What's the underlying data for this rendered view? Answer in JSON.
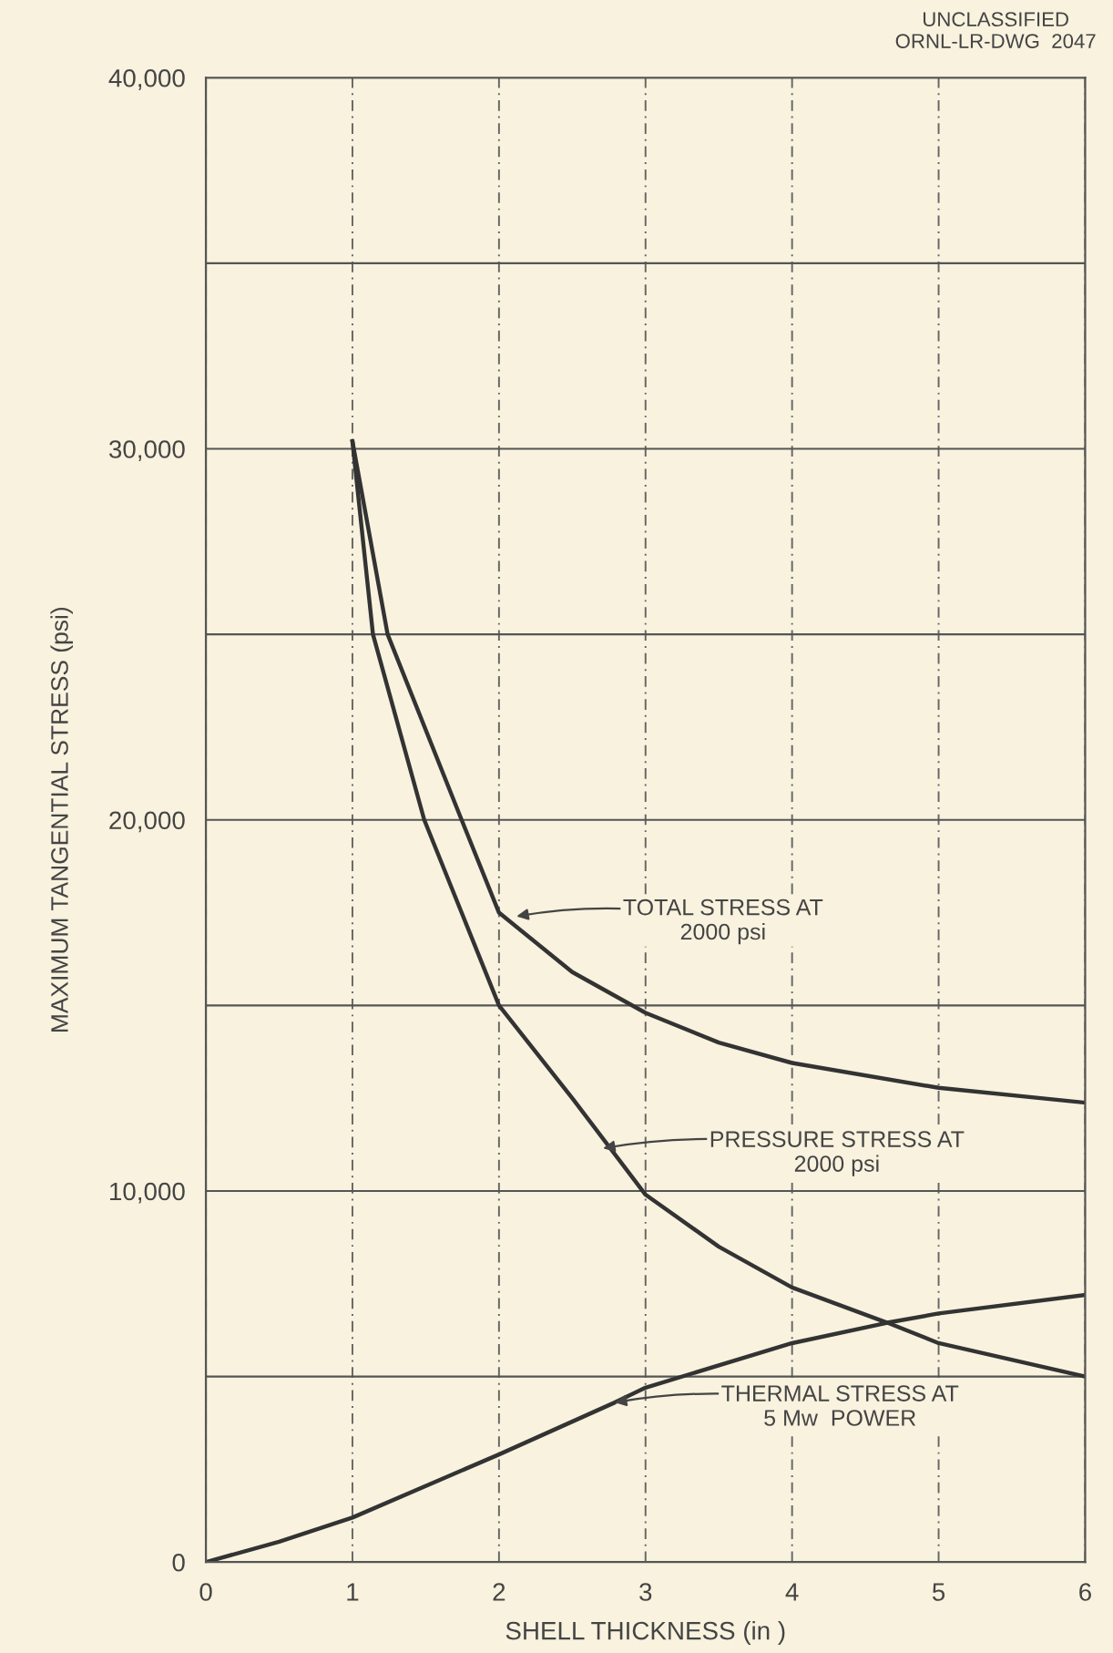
{
  "chart_data": {
    "type": "line",
    "xlabel": "SHELL THICKNESS (in )",
    "ylabel": "MAXIMUM TANGENTIAL STRESS (psi)",
    "xlim": [
      0,
      6
    ],
    "xticks": [
      0,
      1,
      2,
      3,
      4,
      5,
      6
    ],
    "ylim": [
      0,
      40000
    ],
    "yticks": [
      {
        "value": 0,
        "label": "0"
      },
      {
        "value": 5000,
        "label": null
      },
      {
        "value": 10000,
        "label": "10,000"
      },
      {
        "value": 15000,
        "label": null
      },
      {
        "value": 20000,
        "label": "20,000"
      },
      {
        "value": 25000,
        "label": null
      },
      {
        "value": 30000,
        "label": "30,000"
      },
      {
        "value": 35000,
        "label": null
      },
      {
        "value": 40000,
        "label": "40,000"
      }
    ],
    "grid": true,
    "series": [
      {
        "color": "#333333",
        "x": [
          1,
          1.24,
          1.745,
          2,
          2.5,
          3,
          3.5,
          4,
          5,
          6
        ],
        "values": [
          30200,
          25000,
          20000,
          17500,
          15900,
          14800,
          14000,
          13450,
          12780,
          12380
        ]
      },
      {
        "color": "#333333",
        "x": [
          1,
          1.14,
          1.49,
          2,
          2.5,
          3,
          3.5,
          4,
          4.65,
          5,
          6
        ],
        "values": [
          30200,
          25000,
          20000,
          15000,
          12500,
          9900,
          8500,
          7400,
          6450,
          5900,
          5000
        ]
      },
      {
        "color": "#333333",
        "x": [
          0,
          0.5,
          1,
          2,
          2.79,
          3,
          4,
          4.65,
          5,
          6
        ],
        "values": [
          0,
          550,
          1200,
          2900,
          4300,
          4700,
          5900,
          6450,
          6700,
          7200
        ]
      }
    ],
    "annotations": [
      {
        "text": "TOTAL STRESS AT\n2000 psi",
        "x": 2.12,
        "y": 17400
      },
      {
        "text": "PRESSURE STRESS AT\n2000 psi",
        "x": 2.71,
        "y": 11150
      },
      {
        "text": "THERMAL STRESS AT\n5 Mw  POWER",
        "x": 2.79,
        "y": 4300
      },
      "UNCLASSIFIED\nORNL-LR-DWG  2047"
    ]
  }
}
